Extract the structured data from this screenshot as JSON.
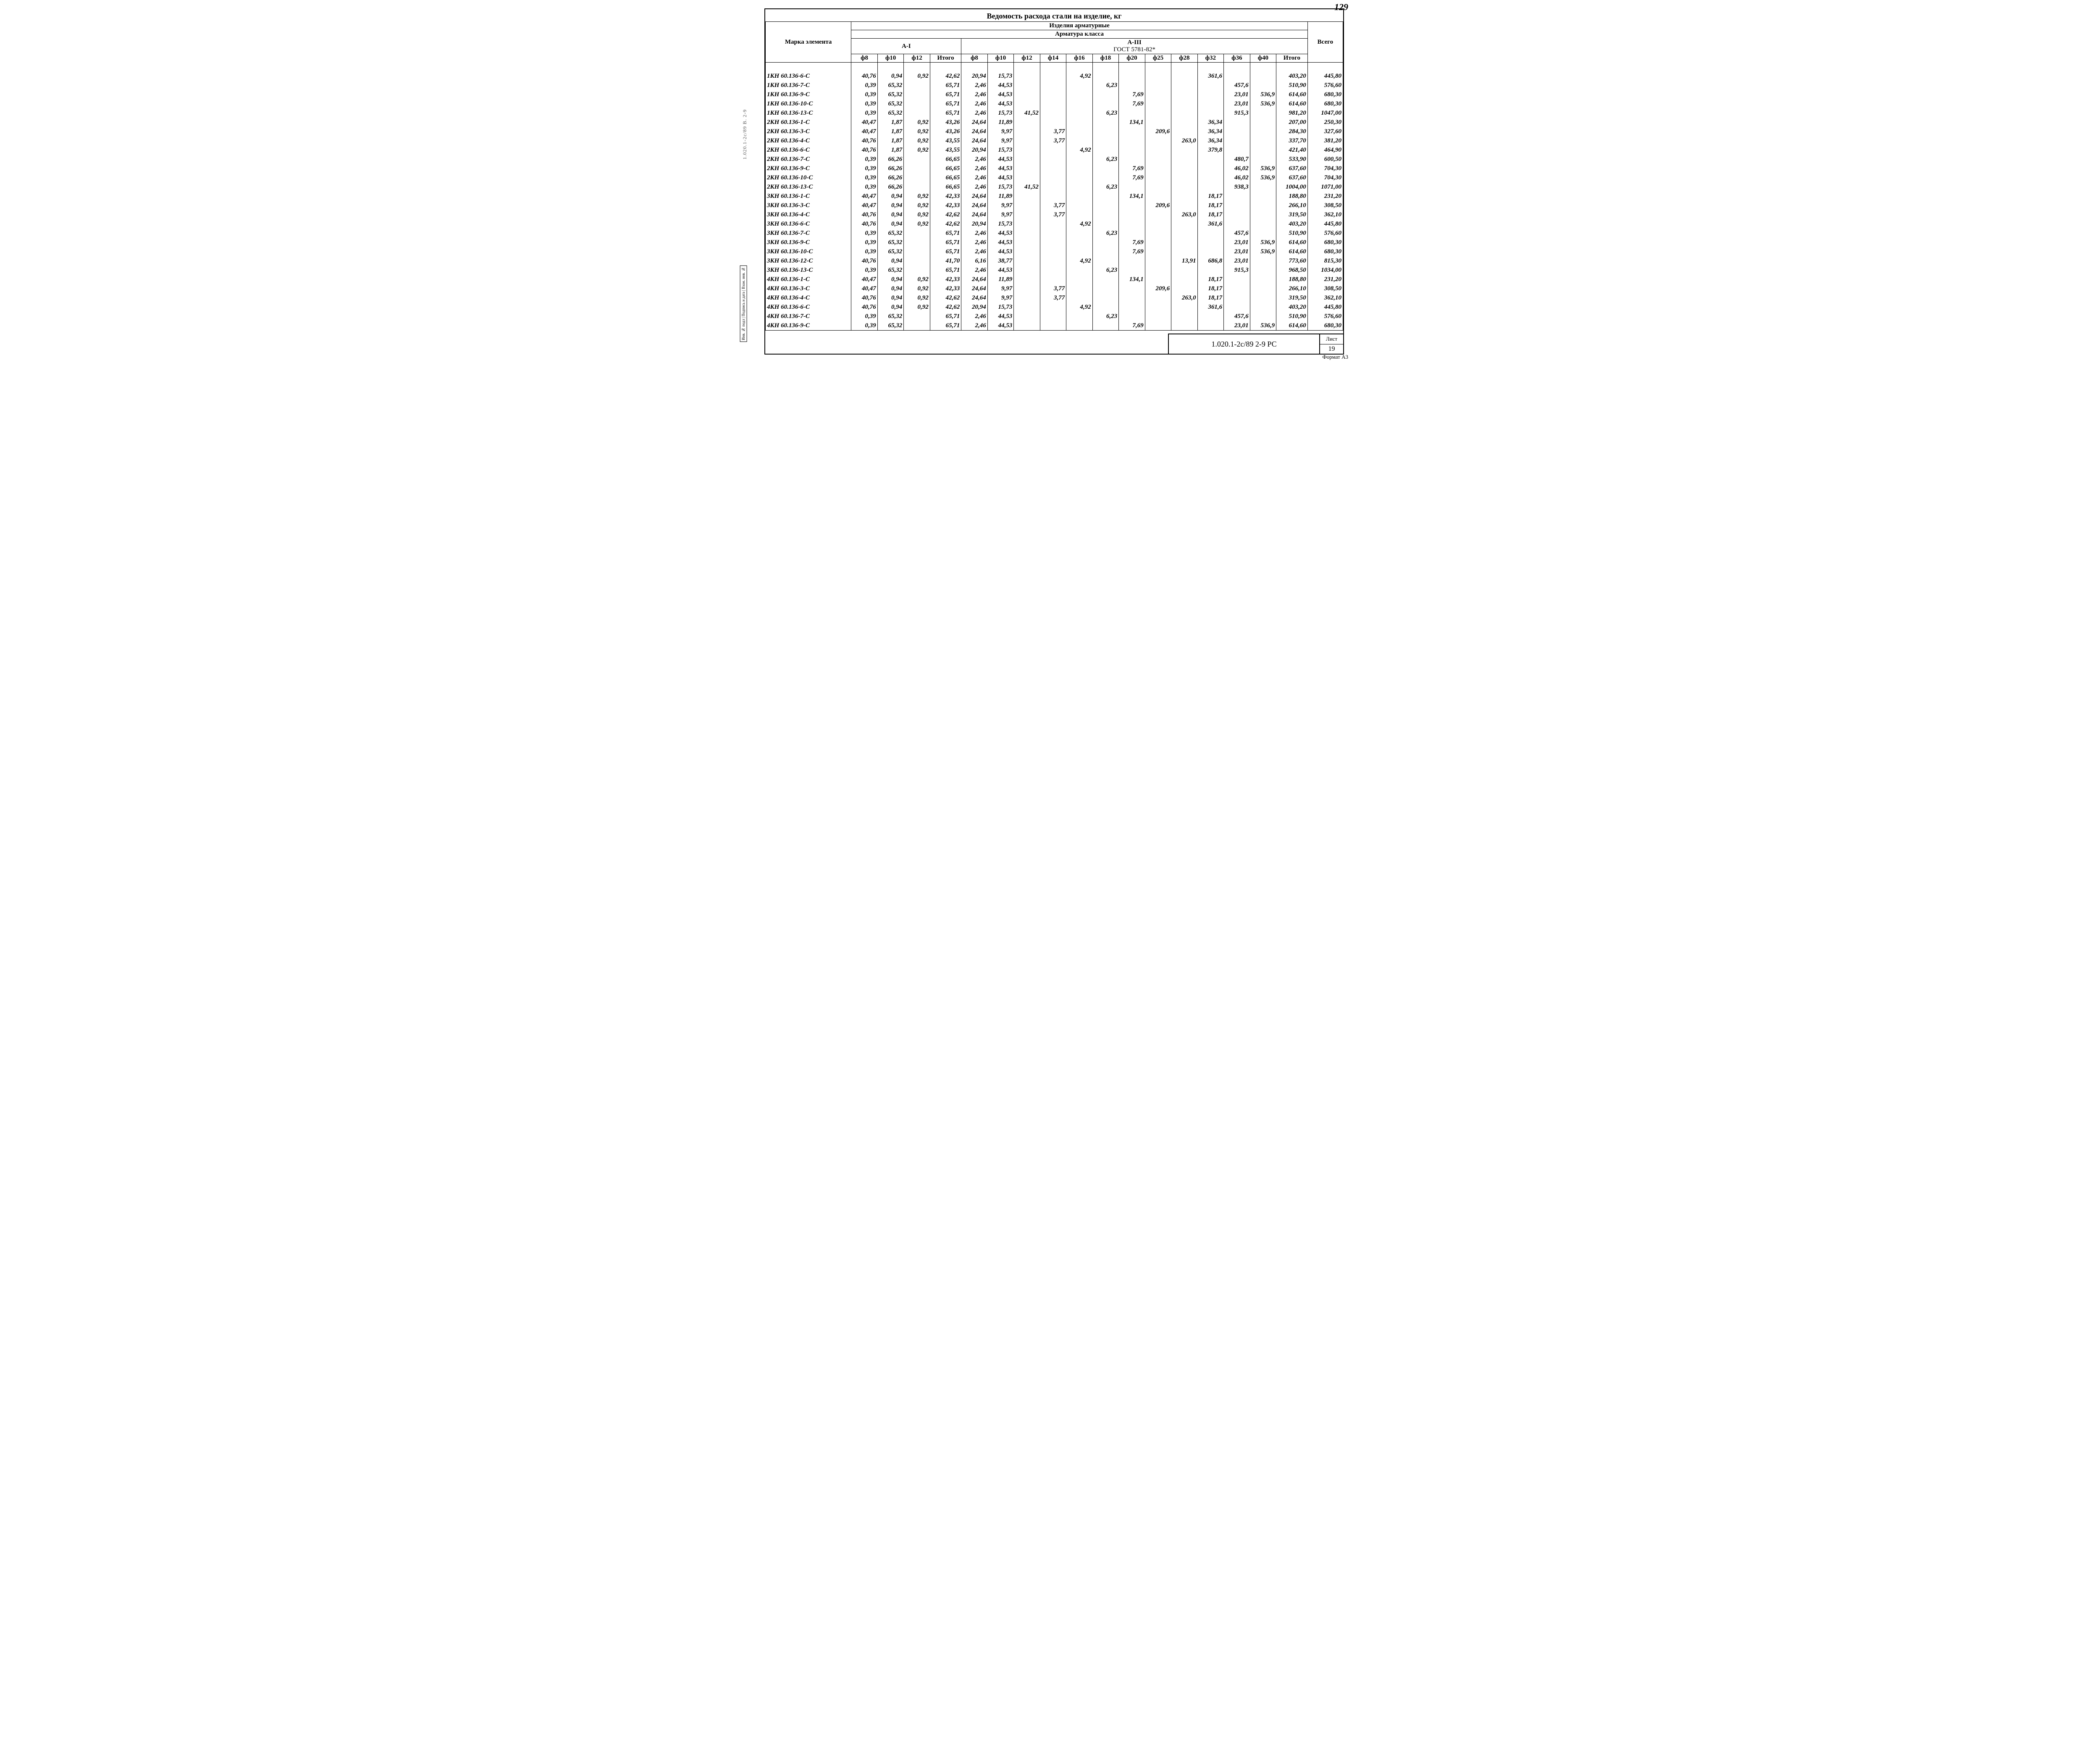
{
  "page_number_top": "129",
  "doc_title": "Ведомость расхода стали на изделие, кг",
  "left_strip": "1.020.1-2с/89  В. 2-9",
  "side_labels": "Инв. № подл | Подпись и дата | Взам. инв. №",
  "format_label": "Формат А3",
  "title_block": {
    "code": "1.020.1-2с/89  2-9 РС",
    "sheet_label": "Лист",
    "sheet_no": "19"
  },
  "headers": {
    "mark": "Марка элемента",
    "group_top": "Изделия арматурные",
    "group_mid": "Арматура класса",
    "a1": "А-I",
    "a3": "А-III",
    "gost": "ГОСТ 5781-82*",
    "total": "Всего",
    "itogo": "Итого",
    "a1_cols": [
      "ф8",
      "ф10",
      "ф12"
    ],
    "a3_cols": [
      "ф8",
      "ф10",
      "ф12",
      "ф14",
      "ф16",
      "ф18",
      "ф20",
      "ф25",
      "ф28",
      "ф32",
      "ф36",
      "ф40"
    ]
  },
  "rows": [
    {
      "m": "1КН 60.136-6-С",
      "a1": [
        "40,76",
        "0,94",
        "0,92"
      ],
      "i1": "42,62",
      "a3": [
        "20,94",
        "15,73",
        "",
        "",
        "4,92",
        "",
        "",
        "",
        "",
        "361,6",
        "",
        ""
      ],
      "i3": "403,20",
      "t": "445,80"
    },
    {
      "m": "1КН 60.136-7-С",
      "a1": [
        "0,39",
        "65,32",
        ""
      ],
      "i1": "65,71",
      "a3": [
        "2,46",
        "44,53",
        "",
        "",
        "",
        "6,23",
        "",
        "",
        "",
        "",
        "457,6",
        ""
      ],
      "i3": "510,90",
      "t": "576,60"
    },
    {
      "m": "1КН 60.136-9-С",
      "a1": [
        "0,39",
        "65,32",
        ""
      ],
      "i1": "65,71",
      "a3": [
        "2,46",
        "44,53",
        "",
        "",
        "",
        "",
        "7,69",
        "",
        "",
        "",
        "23,01",
        "536,9"
      ],
      "i3": "614,60",
      "t": "680,30"
    },
    {
      "m": "1КН 60.136-10-С",
      "a1": [
        "0,39",
        "65,32",
        ""
      ],
      "i1": "65,71",
      "a3": [
        "2,46",
        "44,53",
        "",
        "",
        "",
        "",
        "7,69",
        "",
        "",
        "",
        "23,01",
        "536,9"
      ],
      "i3": "614,60",
      "t": "680,30"
    },
    {
      "m": "1КН 60.136-13-С",
      "a1": [
        "0,39",
        "65,32",
        ""
      ],
      "i1": "65,71",
      "a3": [
        "2,46",
        "15,73",
        "41,52",
        "",
        "",
        "6,23",
        "",
        "",
        "",
        "",
        "915,3",
        ""
      ],
      "i3": "981,20",
      "t": "1047,00"
    },
    {
      "m": "2КН 60.136-1-С",
      "a1": [
        "40,47",
        "1,87",
        "0,92"
      ],
      "i1": "43,26",
      "a3": [
        "24,64",
        "11,89",
        "",
        "",
        "",
        "",
        "134,1",
        "",
        "",
        "36,34",
        "",
        ""
      ],
      "i3": "207,00",
      "t": "250,30"
    },
    {
      "m": "2КН 60.136-3-С",
      "a1": [
        "40,47",
        "1,87",
        "0,92"
      ],
      "i1": "43,26",
      "a3": [
        "24,64",
        "9,97",
        "",
        "3,77",
        "",
        "",
        "",
        "209,6",
        "",
        "36,34",
        "",
        ""
      ],
      "i3": "284,30",
      "t": "327,60"
    },
    {
      "m": "2КН 60.136-4-С",
      "a1": [
        "40,76",
        "1,87",
        "0,92"
      ],
      "i1": "43,55",
      "a3": [
        "24,64",
        "9,97",
        "",
        "3,77",
        "",
        "",
        "",
        "",
        "263,0",
        "36,34",
        "",
        ""
      ],
      "i3": "337,70",
      "t": "381,20"
    },
    {
      "m": "2КН 60.136-6-С",
      "a1": [
        "40,76",
        "1,87",
        "0,92"
      ],
      "i1": "43,55",
      "a3": [
        "20,94",
        "15,73",
        "",
        "",
        "4,92",
        "",
        "",
        "",
        "",
        "379,8",
        "",
        ""
      ],
      "i3": "421,40",
      "t": "464,90"
    },
    {
      "m": "2КН 60.136-7-С",
      "a1": [
        "0,39",
        "66,26",
        ""
      ],
      "i1": "66,65",
      "a3": [
        "2,46",
        "44,53",
        "",
        "",
        "",
        "6,23",
        "",
        "",
        "",
        "",
        "480,7",
        ""
      ],
      "i3": "533,90",
      "t": "600,50"
    },
    {
      "m": "2КН 60.136-9-С",
      "a1": [
        "0,39",
        "66,26",
        ""
      ],
      "i1": "66,65",
      "a3": [
        "2,46",
        "44,53",
        "",
        "",
        "",
        "",
        "7,69",
        "",
        "",
        "",
        "46,02",
        "536,9"
      ],
      "i3": "637,60",
      "t": "704,30"
    },
    {
      "m": "2КН 60.136-10-С",
      "a1": [
        "0,39",
        "66,26",
        ""
      ],
      "i1": "66,65",
      "a3": [
        "2,46",
        "44,53",
        "",
        "",
        "",
        "",
        "7,69",
        "",
        "",
        "",
        "46,02",
        "536,9"
      ],
      "i3": "637,60",
      "t": "704,30"
    },
    {
      "m": "2КН 60.136-13-С",
      "a1": [
        "0,39",
        "66,26",
        ""
      ],
      "i1": "66,65",
      "a3": [
        "2,46",
        "15,73",
        "41,52",
        "",
        "",
        "6,23",
        "",
        "",
        "",
        "",
        "938,3",
        ""
      ],
      "i3": "1004,00",
      "t": "1071,00"
    },
    {
      "m": "3КН 60.136-1-С",
      "a1": [
        "40,47",
        "0,94",
        "0,92"
      ],
      "i1": "42,33",
      "a3": [
        "24,64",
        "11,89",
        "",
        "",
        "",
        "",
        "134,1",
        "",
        "",
        "18,17",
        "",
        ""
      ],
      "i3": "188,80",
      "t": "231,20"
    },
    {
      "m": "3КН 60.136-3-С",
      "a1": [
        "40,47",
        "0,94",
        "0,92"
      ],
      "i1": "42,33",
      "a3": [
        "24,64",
        "9,97",
        "",
        "3,77",
        "",
        "",
        "",
        "209,6",
        "",
        "18,17",
        "",
        ""
      ],
      "i3": "266,10",
      "t": "308,50"
    },
    {
      "m": "3КН 60.136-4-С",
      "a1": [
        "40,76",
        "0,94",
        "0,92"
      ],
      "i1": "42,62",
      "a3": [
        "24,64",
        "9,97",
        "",
        "3,77",
        "",
        "",
        "",
        "",
        "263,0",
        "18,17",
        "",
        ""
      ],
      "i3": "319,50",
      "t": "362,10"
    },
    {
      "m": "3КН 60.136-6-С",
      "a1": [
        "40,76",
        "0,94",
        "0,92"
      ],
      "i1": "42,62",
      "a3": [
        "20,94",
        "15,73",
        "",
        "",
        "4,92",
        "",
        "",
        "",
        "",
        "361,6",
        "",
        ""
      ],
      "i3": "403,20",
      "t": "445,80"
    },
    {
      "m": "3КН 60.136-7-С",
      "a1": [
        "0,39",
        "65,32",
        ""
      ],
      "i1": "65,71",
      "a3": [
        "2,46",
        "44,53",
        "",
        "",
        "",
        "6,23",
        "",
        "",
        "",
        "",
        "457,6",
        ""
      ],
      "i3": "510,90",
      "t": "576,60"
    },
    {
      "m": "3КН 60.136-9-С",
      "a1": [
        "0,39",
        "65,32",
        ""
      ],
      "i1": "65,71",
      "a3": [
        "2,46",
        "44,53",
        "",
        "",
        "",
        "",
        "7,69",
        "",
        "",
        "",
        "23,01",
        "536,9"
      ],
      "i3": "614,60",
      "t": "680,30"
    },
    {
      "m": "3КН 60.136-10-С",
      "a1": [
        "0,39",
        "65,32",
        ""
      ],
      "i1": "65,71",
      "a3": [
        "2,46",
        "44,53",
        "",
        "",
        "",
        "",
        "7,69",
        "",
        "",
        "",
        "23,01",
        "536,9"
      ],
      "i3": "614,60",
      "t": "680,30"
    },
    {
      "m": "3КН 60.136-12-С",
      "a1": [
        "40,76",
        "0,94",
        ""
      ],
      "i1": "41,70",
      "a3": [
        "6,16",
        "38,77",
        "",
        "",
        "4,92",
        "",
        "",
        "",
        "13,91",
        "686,8",
        "23,01",
        ""
      ],
      "i3": "773,60",
      "t": "815,30"
    },
    {
      "m": "3КН 60.136-13-С",
      "a1": [
        "0,39",
        "65,32",
        ""
      ],
      "i1": "65,71",
      "a3": [
        "2,46",
        "44,53",
        "",
        "",
        "",
        "6,23",
        "",
        "",
        "",
        "",
        "915,3",
        ""
      ],
      "i3": "968,50",
      "t": "1034,00"
    },
    {
      "m": "4КН 60.136-1-С",
      "a1": [
        "40,47",
        "0,94",
        "0,92"
      ],
      "i1": "42,33",
      "a3": [
        "24,64",
        "11,89",
        "",
        "",
        "",
        "",
        "134,1",
        "",
        "",
        "18,17",
        "",
        ""
      ],
      "i3": "188,80",
      "t": "231,20"
    },
    {
      "m": "4КН 60.136-3-С",
      "a1": [
        "40,47",
        "0,94",
        "0,92"
      ],
      "i1": "42,33",
      "a3": [
        "24,64",
        "9,97",
        "",
        "3,77",
        "",
        "",
        "",
        "209,6",
        "",
        "18,17",
        "",
        ""
      ],
      "i3": "266,10",
      "t": "308,50"
    },
    {
      "m": "4КН 60.136-4-С",
      "a1": [
        "40,76",
        "0,94",
        "0,92"
      ],
      "i1": "42,62",
      "a3": [
        "24,64",
        "9,97",
        "",
        "3,77",
        "",
        "",
        "",
        "",
        "263,0",
        "18,17",
        "",
        ""
      ],
      "i3": "319,50",
      "t": "362,10"
    },
    {
      "m": "4КН 60.136-6-С",
      "a1": [
        "40,76",
        "0,94",
        "0,92"
      ],
      "i1": "42,62",
      "a3": [
        "20,94",
        "15,73",
        "",
        "",
        "4,92",
        "",
        "",
        "",
        "",
        "361,6",
        "",
        ""
      ],
      "i3": "403,20",
      "t": "445,80"
    },
    {
      "m": "4КН 60.136-7-С",
      "a1": [
        "0,39",
        "65,32",
        ""
      ],
      "i1": "65,71",
      "a3": [
        "2,46",
        "44,53",
        "",
        "",
        "",
        "6,23",
        "",
        "",
        "",
        "",
        "457,6",
        ""
      ],
      "i3": "510,90",
      "t": "576,60"
    },
    {
      "m": "4КН 60.136-9-С",
      "a1": [
        "0,39",
        "65,32",
        ""
      ],
      "i1": "65,71",
      "a3": [
        "2,46",
        "44,53",
        "",
        "",
        "",
        "",
        "7,69",
        "",
        "",
        "",
        "23,01",
        "536,9"
      ],
      "i3": "614,60",
      "t": "680,30"
    }
  ]
}
